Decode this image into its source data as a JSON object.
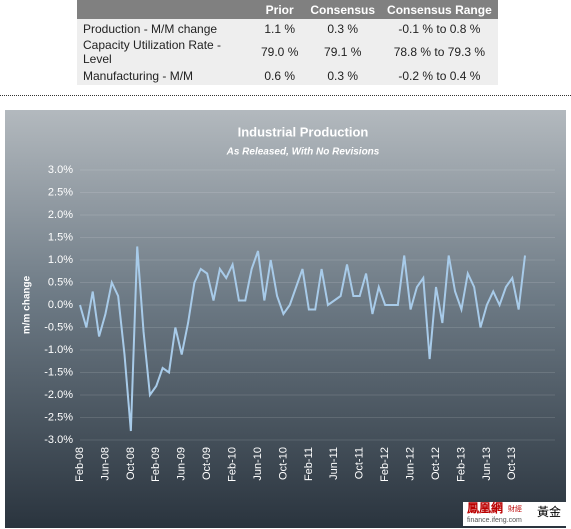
{
  "table": {
    "columns": [
      "Prior",
      "Consensus",
      "Consensus Range"
    ],
    "rows": [
      [
        "Production - M/M change",
        "1.1 %",
        "0.3 %",
        "-0.1 % to 0.8 %"
      ],
      [
        "Capacity Utilization Rate - Level",
        "79.0 %",
        "79.1 %",
        "78.8 % to 79.3 %"
      ],
      [
        "Manufacturing - M/M",
        "0.6 %",
        "0.3 %",
        "-0.2 % to 0.4 %"
      ]
    ]
  },
  "watermark": {
    "logo": "鳳凰網",
    "section": "財經",
    "site": "finance.ifeng.com",
    "tag": "黃金"
  },
  "chart_data": {
    "type": "line",
    "title": "Industrial Production",
    "subtitle": "As Released, With No Revisions",
    "y_label": "m/m change",
    "color": "#a8cbe9",
    "grid": true,
    "ylim": [
      -3.0,
      3.0
    ],
    "yticks": [
      {
        "value": -3.0,
        "label": "-3.0%"
      },
      {
        "value": -2.5,
        "label": "-2.5%"
      },
      {
        "value": -2.0,
        "label": "-2.0%"
      },
      {
        "value": -1.5,
        "label": "-1.5%"
      },
      {
        "value": -1.0,
        "label": "-1.0%"
      },
      {
        "value": -0.5,
        "label": "-0.5%"
      },
      {
        "value": 0,
        "label": "0.0%"
      },
      {
        "value": 0.5,
        "label": "0.5%"
      },
      {
        "value": 1.0,
        "label": "1.0%"
      },
      {
        "value": 1.5,
        "label": "1.5%"
      },
      {
        "value": 2.0,
        "label": "2.0%"
      },
      {
        "value": 2.5,
        "label": "2.5%"
      },
      {
        "value": 3.0,
        "label": "3.0%"
      }
    ],
    "categories": [
      "Feb-08",
      null,
      null,
      null,
      "Jun-08",
      null,
      null,
      null,
      "Oct-08",
      null,
      null,
      null,
      "Feb-09",
      null,
      null,
      null,
      "Jun-09",
      null,
      null,
      null,
      "Oct-09",
      null,
      null,
      null,
      "Feb-10",
      null,
      null,
      null,
      "Jun-10",
      null,
      null,
      null,
      "Oct-10",
      null,
      null,
      null,
      "Feb-11",
      null,
      null,
      null,
      "Jun-11",
      null,
      null,
      null,
      "Oct-11",
      null,
      null,
      null,
      "Feb-12",
      null,
      null,
      null,
      "Jun-12",
      null,
      null,
      null,
      "Oct-12",
      null,
      null,
      null,
      "Feb-13",
      null,
      null,
      null,
      "Jun-13",
      null,
      null,
      null,
      "Oct-13",
      null,
      null
    ],
    "values": [
      0.0,
      -0.5,
      0.3,
      -0.7,
      -0.2,
      0.5,
      0.2,
      -1.1,
      -2.8,
      1.3,
      -0.6,
      -2.0,
      -1.8,
      -1.4,
      -1.5,
      -0.5,
      -1.1,
      -0.4,
      0.5,
      0.8,
      0.7,
      0.1,
      0.8,
      0.6,
      0.9,
      0.1,
      0.1,
      0.8,
      1.2,
      0.1,
      1.0,
      0.2,
      -0.2,
      0.0,
      0.4,
      0.8,
      -0.1,
      -0.1,
      0.8,
      0.0,
      0.1,
      0.2,
      0.9,
      0.2,
      0.2,
      0.7,
      -0.2,
      0.4,
      0.0,
      0.0,
      0.0,
      1.1,
      -0.1,
      0.4,
      0.6,
      -1.2,
      0.4,
      -0.4,
      1.1,
      0.3,
      -0.1,
      0.7,
      0.4,
      -0.5,
      0.0,
      0.3,
      0.0,
      0.4,
      0.6,
      -0.1,
      1.1
    ]
  }
}
